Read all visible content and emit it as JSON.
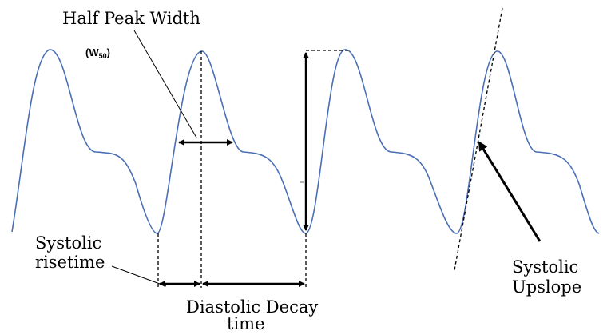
{
  "labels": {
    "half_peak_width": "Half Peak Width",
    "w50_main": "(W",
    "w50_sub": "50",
    "w50_close": ")",
    "systolic_risetime_line1": "Systolic",
    "systolic_risetime_line2": "risetime",
    "diastolic_decay_line1": "Diastolic Decay",
    "diastolic_decay_line2": "time",
    "systolic_upslope_line1": "Systolic",
    "systolic_upslope_line2": "Upslope"
  },
  "colors": {
    "waveform": "#4a6fb5",
    "annotation": "#000000",
    "background": "#ffffff"
  }
}
